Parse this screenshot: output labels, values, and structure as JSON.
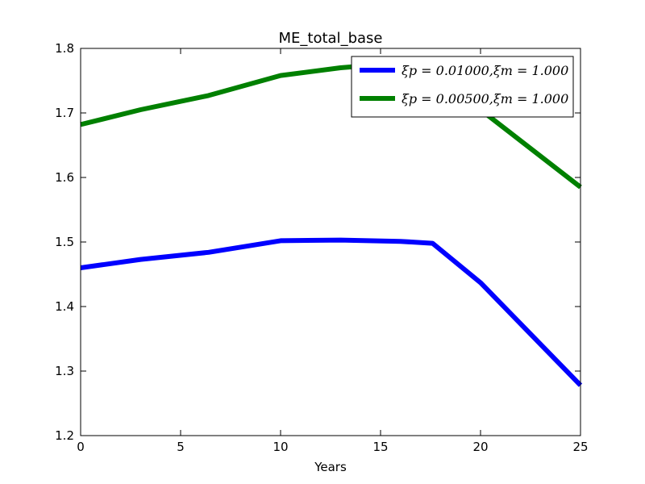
{
  "chart_data": {
    "type": "line",
    "title": "ME_total_base",
    "xlabel": "Years",
    "ylabel": "",
    "xlim": [
      0,
      25
    ],
    "ylim": [
      1.2,
      1.8
    ],
    "xticks": [
      0,
      5,
      10,
      15,
      20,
      25
    ],
    "yticks": [
      1.2,
      1.3,
      1.4,
      1.5,
      1.6,
      1.7,
      1.8
    ],
    "grid": false,
    "legend_position": "top-right",
    "series": [
      {
        "name": "ξp = 0.01000,ξm = 1.000",
        "color": "#0000ff",
        "x": [
          0,
          3,
          6.4,
          10,
          13,
          16,
          17.6,
          20,
          25
        ],
        "y": [
          1.46,
          1.473,
          1.484,
          1.502,
          1.503,
          1.501,
          1.498,
          1.437,
          1.278
        ]
      },
      {
        "name": "ξp = 0.00500,ξm = 1.000",
        "color": "#008000",
        "x": [
          0,
          3,
          6.4,
          10,
          13,
          15,
          17.6,
          20,
          25
        ],
        "y": [
          1.682,
          1.705,
          1.727,
          1.758,
          1.77,
          1.775,
          1.76,
          1.705,
          1.585
        ]
      }
    ]
  }
}
